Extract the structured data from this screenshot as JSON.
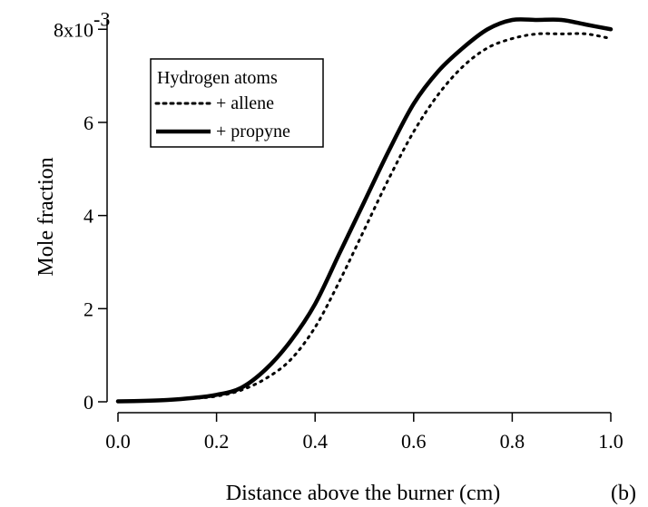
{
  "chart_data": {
    "type": "line",
    "xlabel": "Distance above the burner (cm)",
    "ylabel": "Mole fraction",
    "xlim": [
      0.0,
      1.0
    ],
    "ylim": [
      0,
      0.0082
    ],
    "x_ticks": [
      0.0,
      0.2,
      0.4,
      0.6,
      0.8,
      1.0
    ],
    "x_tick_labels": [
      "0.0",
      "0.2",
      "0.4",
      "0.6",
      "0.8",
      "1.0"
    ],
    "y_ticks": [
      0,
      0.002,
      0.004,
      0.006,
      0.008
    ],
    "y_tick_labels": [
      "0",
      "2",
      "4",
      "6",
      "8x10"
    ],
    "y_tick_exponent": "-3",
    "grid": false,
    "legend": {
      "title": "Hydrogen atoms",
      "placement": "top-left",
      "entries": [
        "+ allene",
        "+ propyne"
      ]
    },
    "panel_label": "(b)",
    "series": [
      {
        "name": "+ allene",
        "style": "dotted",
        "color": "#000000",
        "x": [
          0.0,
          0.05,
          0.1,
          0.15,
          0.2,
          0.25,
          0.3,
          0.35,
          0.4,
          0.45,
          0.5,
          0.55,
          0.6,
          0.65,
          0.7,
          0.75,
          0.8,
          0.85,
          0.9,
          0.95,
          1.0
        ],
        "y": [
          1e-05,
          2e-05,
          4e-05,
          7e-05,
          0.00012,
          0.00025,
          0.0005,
          0.0009,
          0.0016,
          0.0026,
          0.0037,
          0.0048,
          0.0058,
          0.0066,
          0.0072,
          0.0076,
          0.0078,
          0.0079,
          0.0079,
          0.0079,
          0.0078
        ]
      },
      {
        "name": "+ propyne",
        "style": "solid",
        "color": "#000000",
        "x": [
          0.0,
          0.05,
          0.1,
          0.15,
          0.2,
          0.25,
          0.3,
          0.35,
          0.4,
          0.45,
          0.5,
          0.55,
          0.6,
          0.65,
          0.7,
          0.75,
          0.8,
          0.85,
          0.9,
          0.95,
          1.0
        ],
        "y": [
          1e-05,
          2e-05,
          4e-05,
          8e-05,
          0.00015,
          0.0003,
          0.0007,
          0.0013,
          0.0021,
          0.0032,
          0.0043,
          0.0054,
          0.0064,
          0.0071,
          0.0076,
          0.008,
          0.0082,
          0.0082,
          0.0082,
          0.0081,
          0.008
        ]
      }
    ]
  }
}
